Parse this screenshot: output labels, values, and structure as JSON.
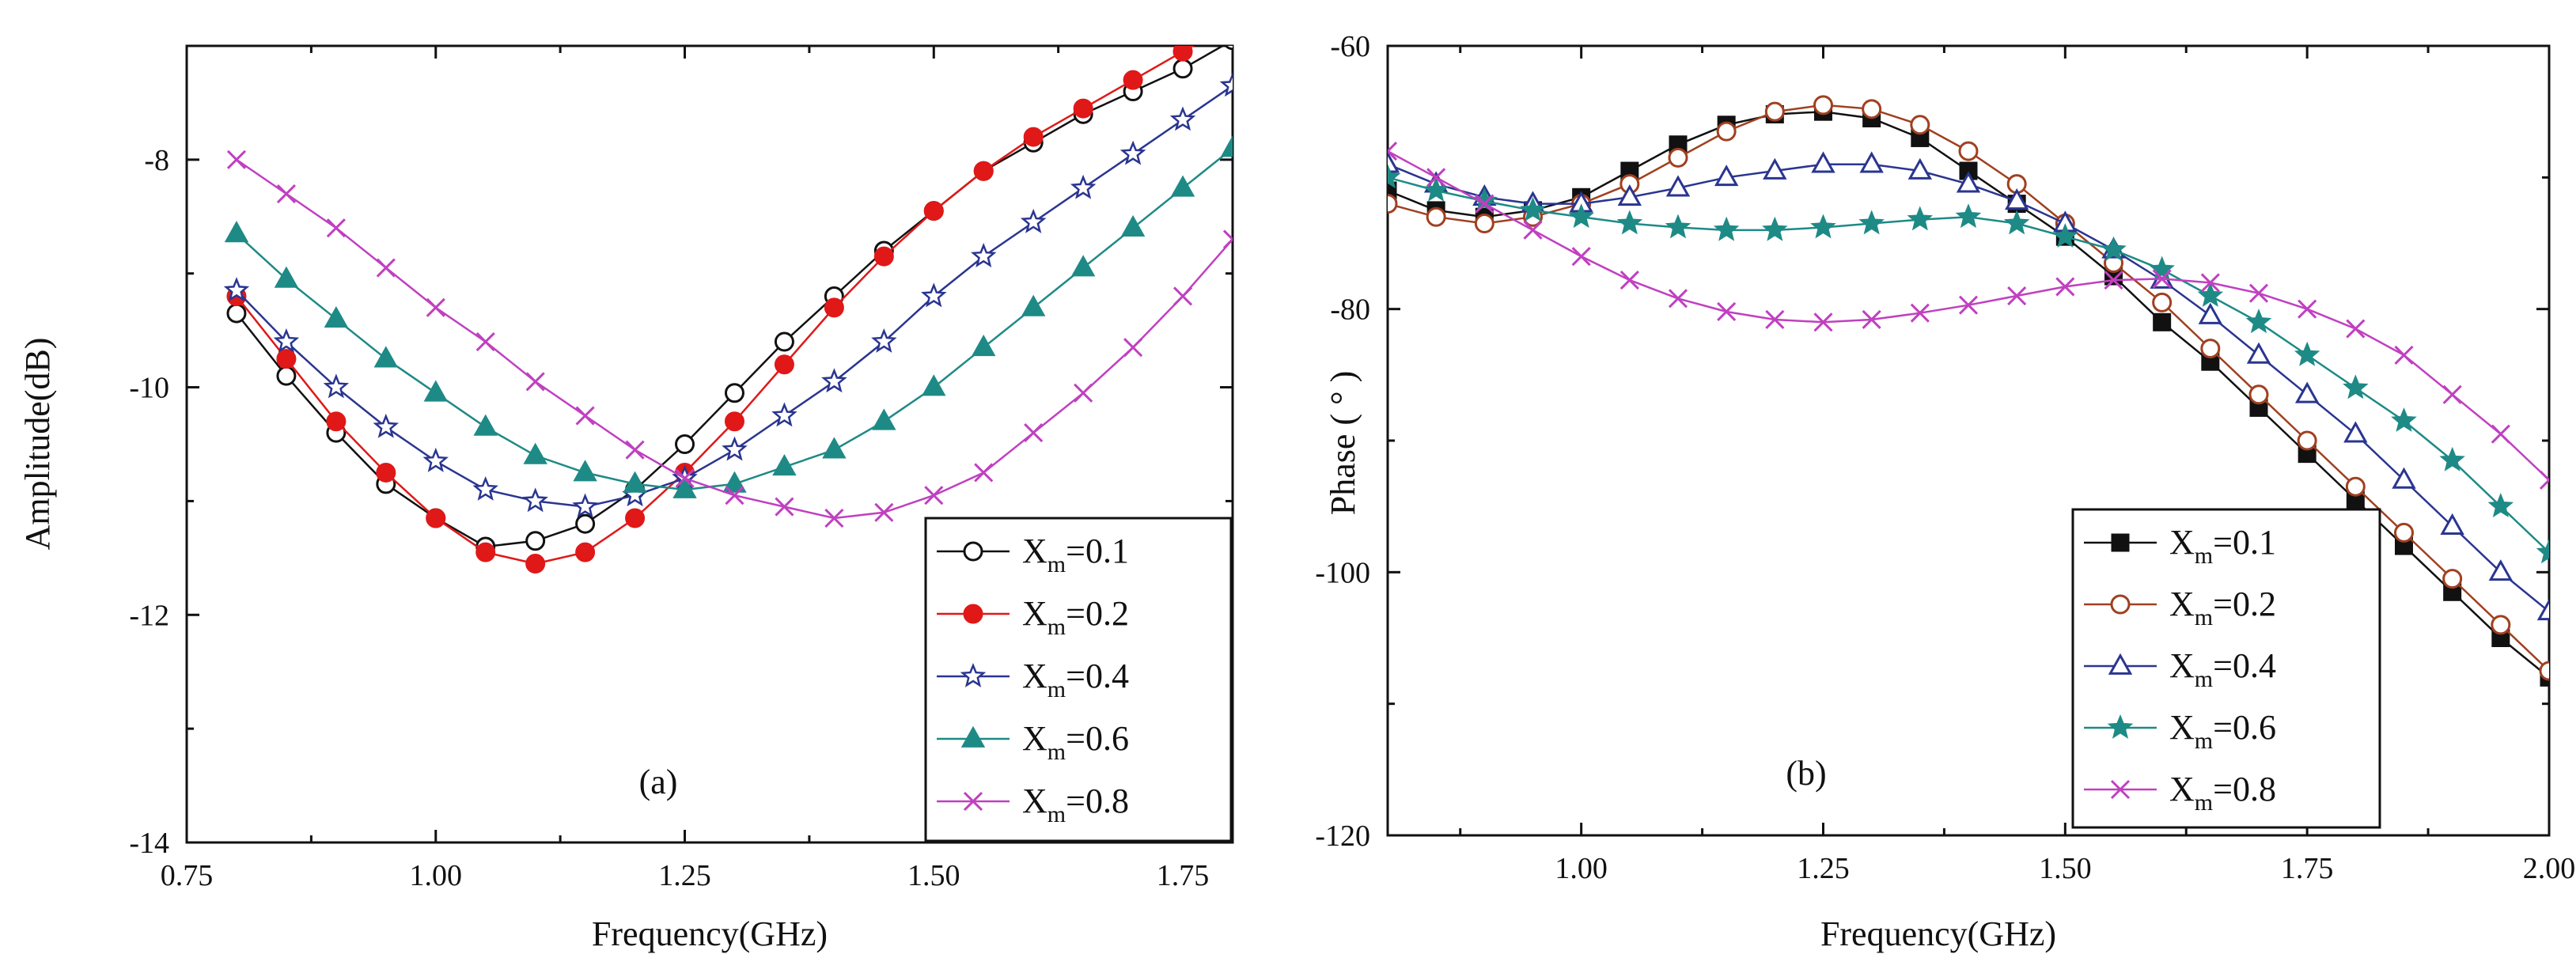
{
  "chart_data": [
    {
      "type": "line",
      "panel_label": "(a)",
      "xlabel": "Frequency(GHz)",
      "ylabel": "Amplitude(dB)",
      "xlim": [
        0.75,
        1.8
      ],
      "ylim": [
        -14,
        -7
      ],
      "xticks": [
        0.75,
        1.0,
        1.25,
        1.5,
        1.75
      ],
      "xtick_labels": [
        "0.75",
        "1.00",
        "1.25",
        "1.50",
        "1.75"
      ],
      "yticks": [
        -14,
        -12,
        -10,
        -8
      ],
      "ytick_labels": [
        "-14",
        "-12",
        "-10",
        "-8"
      ],
      "legend_position": "bottom-right",
      "x": [
        0.8,
        0.85,
        0.9,
        0.95,
        1.0,
        1.05,
        1.1,
        1.15,
        1.2,
        1.25,
        1.3,
        1.35,
        1.4,
        1.45,
        1.5,
        1.55,
        1.6,
        1.65,
        1.7,
        1.75,
        1.8
      ],
      "series": [
        {
          "name": "Xm=0.1",
          "label_main": "X",
          "label_sub": "m",
          "label_rest": "=0.1",
          "marker": "circle-open",
          "color": "#111111",
          "values": [
            -9.35,
            -9.9,
            -10.4,
            -10.85,
            -11.15,
            -11.4,
            -11.35,
            -11.2,
            -10.9,
            -10.5,
            -10.05,
            -9.6,
            -9.2,
            -8.8,
            -8.45,
            -8.1,
            -7.85,
            -7.6,
            -7.4,
            -7.2,
            -6.95
          ]
        },
        {
          "name": "Xm=0.2",
          "label_main": "X",
          "label_sub": "m",
          "label_rest": "=0.2",
          "marker": "circle-filled",
          "color": "#e01818",
          "values": [
            -9.2,
            -9.75,
            -10.3,
            -10.75,
            -11.15,
            -11.45,
            -11.55,
            -11.45,
            -11.15,
            -10.75,
            -10.3,
            -9.8,
            -9.3,
            -8.85,
            -8.45,
            -8.1,
            -7.8,
            -7.55,
            -7.3,
            -7.05,
            -6.8
          ]
        },
        {
          "name": "Xm=0.4",
          "label_main": "X",
          "label_sub": "m",
          "label_rest": "=0.4",
          "marker": "star-open",
          "color": "#2a3590",
          "values": [
            -9.15,
            -9.6,
            -10.0,
            -10.35,
            -10.65,
            -10.9,
            -11.0,
            -11.05,
            -10.95,
            -10.8,
            -10.55,
            -10.25,
            -9.95,
            -9.6,
            -9.2,
            -8.85,
            -8.55,
            -8.25,
            -7.95,
            -7.65,
            -7.35
          ]
        },
        {
          "name": "Xm=0.6",
          "label_main": "X",
          "label_sub": "m",
          "label_rest": "=0.6",
          "marker": "triangle-filled",
          "color": "#1e8a86",
          "values": [
            -8.65,
            -9.05,
            -9.4,
            -9.75,
            -10.05,
            -10.35,
            -10.6,
            -10.75,
            -10.85,
            -10.9,
            -10.85,
            -10.7,
            -10.55,
            -10.3,
            -10.0,
            -9.65,
            -9.3,
            -8.95,
            -8.6,
            -8.25,
            -7.9
          ]
        },
        {
          "name": "Xm=0.8",
          "label_main": "X",
          "label_sub": "m",
          "label_rest": "=0.8",
          "marker": "x",
          "color": "#c040c0",
          "values": [
            -8.0,
            -8.3,
            -8.6,
            -8.95,
            -9.3,
            -9.6,
            -9.95,
            -10.25,
            -10.55,
            -10.8,
            -10.95,
            -11.05,
            -11.15,
            -11.1,
            -10.95,
            -10.75,
            -10.4,
            -10.05,
            -9.65,
            -9.2,
            -8.7
          ]
        }
      ]
    },
    {
      "type": "line",
      "panel_label": "(b)",
      "xlabel": "Frequency(GHz)",
      "ylabel": "Phase ( ° )",
      "xlim": [
        0.8,
        2.0
      ],
      "ylim": [
        -120,
        -60
      ],
      "xticks": [
        1.0,
        1.25,
        1.5,
        1.75,
        2.0
      ],
      "xtick_labels": [
        "1.00",
        "1.25",
        "1.50",
        "1.75",
        "2.00"
      ],
      "yticks": [
        -120,
        -100,
        -80,
        -60
      ],
      "ytick_labels": [
        "-120",
        "-100",
        "-80",
        "-60"
      ],
      "legend_position": "bottom-center",
      "x": [
        0.8,
        0.85,
        0.9,
        0.95,
        1.0,
        1.05,
        1.1,
        1.15,
        1.2,
        1.25,
        1.3,
        1.35,
        1.4,
        1.45,
        1.5,
        1.55,
        1.6,
        1.65,
        1.7,
        1.75,
        1.8,
        1.85,
        1.9,
        1.95,
        2.0
      ],
      "series": [
        {
          "name": "Xm=0.1",
          "label_main": "X",
          "label_sub": "m",
          "label_rest": "=0.1",
          "marker": "square-filled",
          "color": "#111111",
          "values": [
            -71.0,
            -72.5,
            -73.0,
            -72.5,
            -71.5,
            -69.5,
            -67.5,
            -66.0,
            -65.2,
            -65.0,
            -65.5,
            -67.0,
            -69.5,
            -72.0,
            -74.5,
            -77.5,
            -81.0,
            -84.0,
            -87.5,
            -91.0,
            -94.5,
            -98.0,
            -101.5,
            -105.0,
            -108.0
          ]
        },
        {
          "name": "Xm=0.2",
          "label_main": "X",
          "label_sub": "m",
          "label_rest": "=0.2",
          "marker": "circle-open",
          "color": "#a04020",
          "values": [
            -72.0,
            -73.0,
            -73.5,
            -73.0,
            -72.0,
            -70.5,
            -68.5,
            -66.5,
            -65.0,
            -64.5,
            -64.8,
            -66.0,
            -68.0,
            -70.5,
            -73.5,
            -76.5,
            -79.5,
            -83.0,
            -86.5,
            -90.0,
            -93.5,
            -97.0,
            -100.5,
            -104.0,
            -107.5
          ]
        },
        {
          "name": "Xm=0.4",
          "label_main": "X",
          "label_sub": "m",
          "label_rest": "=0.4",
          "marker": "triangle-open",
          "color": "#2a3590",
          "values": [
            -69.0,
            -70.5,
            -71.5,
            -72.0,
            -72.0,
            -71.5,
            -70.8,
            -70.0,
            -69.5,
            -69.0,
            -69.0,
            -69.5,
            -70.5,
            -71.8,
            -73.5,
            -75.5,
            -77.8,
            -80.5,
            -83.5,
            -86.5,
            -89.5,
            -93.0,
            -96.5,
            -100.0,
            -103.0
          ]
        },
        {
          "name": "Xm=0.6",
          "label_main": "X",
          "label_sub": "m",
          "label_rest": "=0.6",
          "marker": "star-filled",
          "color": "#1e8a86",
          "values": [
            -70.0,
            -71.0,
            -71.8,
            -72.5,
            -73.0,
            -73.5,
            -73.8,
            -74.0,
            -74.0,
            -73.8,
            -73.5,
            -73.2,
            -73.0,
            -73.5,
            -74.5,
            -75.5,
            -77.0,
            -79.0,
            -81.0,
            -83.5,
            -86.0,
            -88.5,
            -91.5,
            -95.0,
            -98.5
          ]
        },
        {
          "name": "Xm=0.8",
          "label_main": "X",
          "label_sub": "m",
          "label_rest": "=0.8",
          "marker": "x",
          "color": "#c040c0",
          "values": [
            -68.0,
            -70.0,
            -72.0,
            -74.0,
            -76.0,
            -77.8,
            -79.2,
            -80.2,
            -80.8,
            -81.0,
            -80.8,
            -80.3,
            -79.7,
            -79.0,
            -78.3,
            -77.8,
            -77.7,
            -78.0,
            -78.8,
            -80.0,
            -81.5,
            -83.5,
            -86.5,
            -89.5,
            -93.0
          ]
        }
      ]
    }
  ]
}
